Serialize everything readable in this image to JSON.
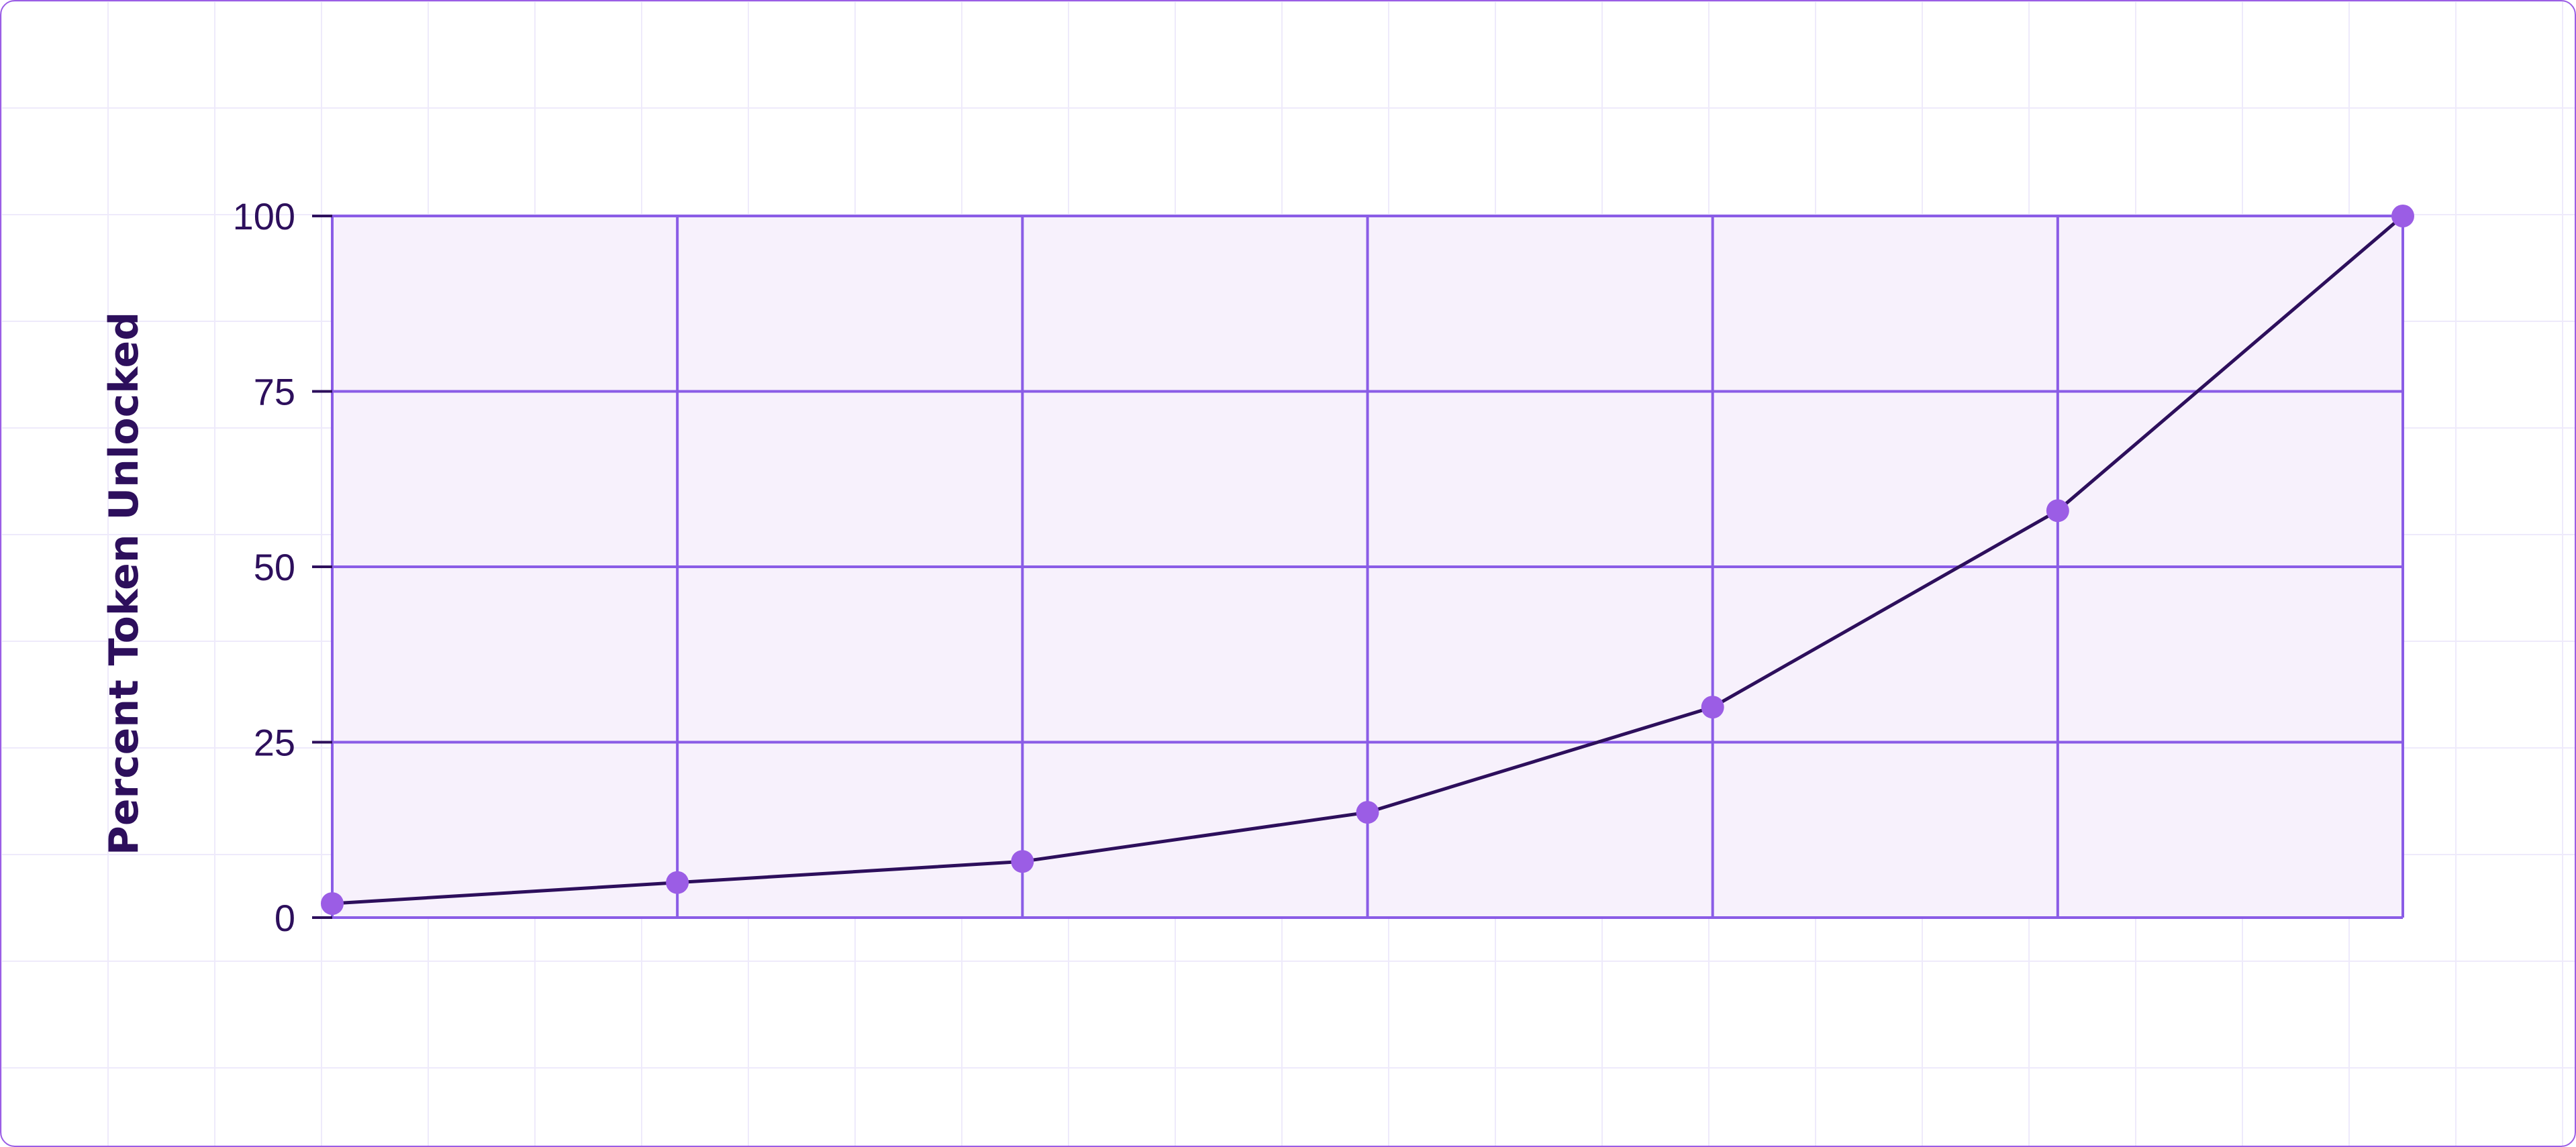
{
  "chart_data": {
    "type": "line",
    "title": "",
    "xlabel": "",
    "ylabel": "Percent Token Unlocked",
    "x": [
      0,
      1,
      2,
      3,
      4,
      5,
      6
    ],
    "series": [
      {
        "values": [
          2,
          5,
          8,
          15,
          30,
          58,
          100
        ]
      }
    ],
    "ylim": [
      0,
      100
    ],
    "yticks": [
      0,
      25,
      50,
      75,
      100
    ],
    "grid": true,
    "legend": "none",
    "colors": {
      "line": "#2d0f5c",
      "marker": "#9b5de5",
      "grid": "#8a5ce6",
      "plot_background": "#f7f1fc",
      "text": "#2d0f5c"
    }
  }
}
